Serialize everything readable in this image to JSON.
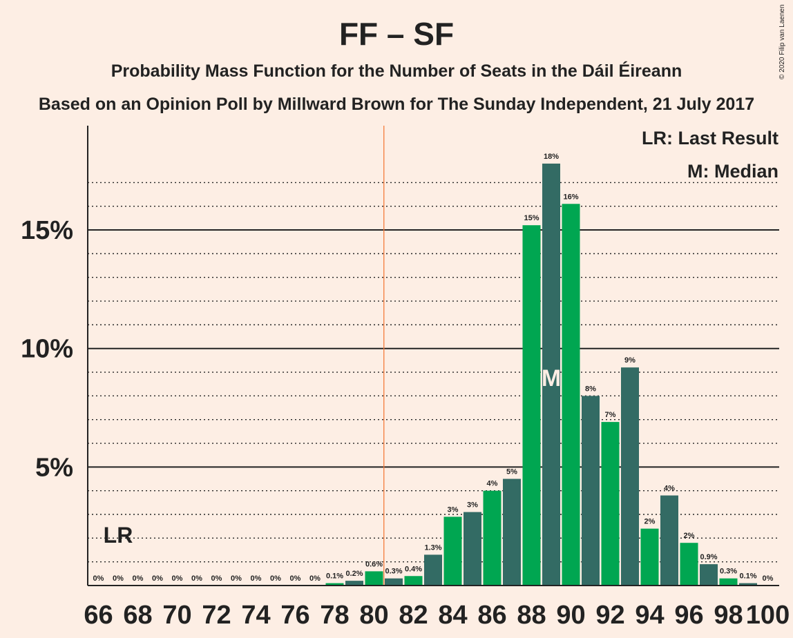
{
  "chart_data": {
    "type": "bar",
    "title": "FF – SF",
    "subtitle": "Probability Mass Function for the Number of Seats in the Dáil Éireann",
    "subtitle2": "Based on an Opinion Poll by Millward Brown for The Sunday Independent, 21 July 2017",
    "copyright": "© 2020 Filip van Laenen",
    "legend": [
      "LR: Last Result",
      "M: Median"
    ],
    "last_result": {
      "seats": 67,
      "label": "LR"
    },
    "median": {
      "seats": 89,
      "label": "M"
    },
    "majority_line_seats": 80.5,
    "x": [
      66,
      67,
      68,
      69,
      70,
      71,
      72,
      73,
      74,
      75,
      76,
      77,
      78,
      79,
      80,
      81,
      82,
      83,
      84,
      85,
      86,
      87,
      88,
      89,
      90,
      91,
      92,
      93,
      94,
      95,
      96,
      97,
      98,
      99,
      100
    ],
    "values": [
      0,
      0,
      0,
      0,
      0,
      0,
      0,
      0,
      0,
      0,
      0,
      0,
      0.1,
      0.2,
      0.6,
      0.3,
      0.4,
      1.3,
      2.9,
      3.1,
      4.0,
      4.5,
      15.2,
      17.8,
      16.1,
      8.0,
      6.9,
      9.2,
      2.4,
      3.8,
      1.8,
      0.9,
      0.3,
      0.1,
      0
    ],
    "value_labels": [
      "0%",
      "0%",
      "0%",
      "0%",
      "0%",
      "0%",
      "0%",
      "0%",
      "0%",
      "0%",
      "0%",
      "0%",
      "0.1%",
      "0.2%",
      "0.6%",
      "0.3%",
      "0.4%",
      "1.3%",
      "3%",
      "3%",
      "4%",
      "5%",
      "15%",
      "18%",
      "16%",
      "8%",
      "7%",
      "9%",
      "2%",
      "4%",
      "2%",
      "0.9%",
      "0.3%",
      "0.1%",
      "0%"
    ],
    "x_tick_labels": [
      "66",
      "68",
      "70",
      "72",
      "74",
      "76",
      "78",
      "80",
      "82",
      "84",
      "86",
      "88",
      "90",
      "92",
      "94",
      "96",
      "98",
      "100"
    ],
    "y_tick_labels": [
      "5%",
      "10%",
      "15%"
    ],
    "y_ticks": [
      5,
      10,
      15
    ],
    "ylim": [
      0,
      19
    ],
    "colors": {
      "even": "#00A651",
      "odd": "#336B64",
      "majority_line": "#F47A3A",
      "background": "#FDEEE4",
      "median_text": "#FDEEE4"
    }
  }
}
